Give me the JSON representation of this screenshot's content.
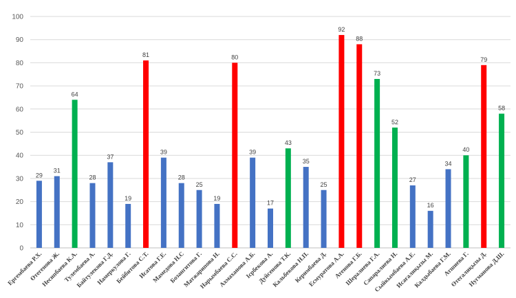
{
  "chart_data": {
    "type": "bar",
    "title": "",
    "xlabel": "",
    "ylabel": "",
    "ylim": [
      0,
      100
    ],
    "yticks": [
      0,
      10,
      20,
      30,
      40,
      50,
      60,
      70,
      80,
      90,
      100
    ],
    "grid": true,
    "legend": "none",
    "categories": [
      "Ергембаева Р.Х.",
      "Өтегенова Ж.",
      "Несипбаева К.А.",
      "Тулембаева А.",
      "Байтулекова Г.Д.",
      "Намеркулова Г.",
      "Бейбитова С.Т.",
      "Исатова Г.Е.",
      "Мамедова Н.С",
      "Бозангитова Г.",
      "Матжарипова Н.",
      "Нарымбаева С.С.",
      "Ахмаханова А.Б.",
      "Ісрбекова А.",
      "Дуйсенова Т.К.",
      "Кальбекова Н.П.",
      "Керимбаева Д.",
      "Есмуратова А.А.",
      "Атенова Г.Б.",
      "Шералиева Г.А.",
      "Сапаралиева Н.",
      "Сыйкымбаева А.Е.",
      "Исағалиқызы М.",
      "Калдыбаева Г.М.",
      "Атшиева Г.",
      "Өтегалиқызы Д.",
      "Нугманова Д.Ш."
    ],
    "values": [
      29,
      31,
      64,
      28,
      37,
      19,
      81,
      39,
      28,
      25,
      19,
      80,
      39,
      17,
      43,
      35,
      25,
      92,
      88,
      73,
      52,
      27,
      16,
      34,
      40,
      79,
      58
    ],
    "bar_colors": [
      "#4472c4",
      "#4472c4",
      "#00b050",
      "#4472c4",
      "#4472c4",
      "#4472c4",
      "#ff0000",
      "#4472c4",
      "#4472c4",
      "#4472c4",
      "#4472c4",
      "#ff0000",
      "#4472c4",
      "#4472c4",
      "#00b050",
      "#4472c4",
      "#4472c4",
      "#ff0000",
      "#ff0000",
      "#00b050",
      "#00b050",
      "#4472c4",
      "#4472c4",
      "#4472c4",
      "#00b050",
      "#ff0000",
      "#00b050"
    ]
  }
}
